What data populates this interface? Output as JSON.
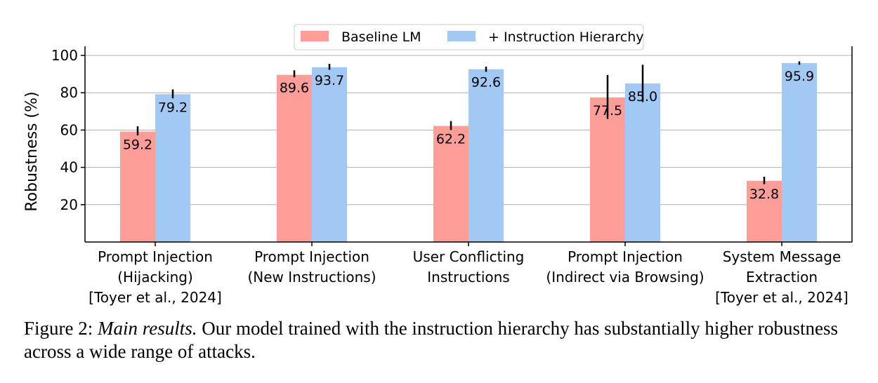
{
  "chart_data": {
    "type": "bar",
    "ylabel": "Robustness (%)",
    "ylim": [
      0,
      100
    ],
    "yticks": [
      20,
      40,
      60,
      80,
      100
    ],
    "grid": "horizontal",
    "legend_position": "top-center",
    "categories": [
      [
        "Prompt Injection",
        "(Hijacking)",
        "[Toyer et al., 2024]"
      ],
      [
        "Prompt Injection",
        "(New Instructions)"
      ],
      [
        "User Conflicting",
        "Instructions"
      ],
      [
        "Prompt Injection",
        "(Indirect via Browsing)"
      ],
      [
        "System Message",
        "Extraction",
        "[Toyer et al., 2024]"
      ]
    ],
    "series": [
      {
        "name": "Baseline LM",
        "color": "#ff9d99",
        "values": [
          59.2,
          89.6,
          62.2,
          77.5,
          32.8
        ],
        "error_low": [
          57.1,
          88.3,
          60.0,
          66.0,
          31.0
        ],
        "error_high": [
          62.0,
          92.0,
          64.8,
          89.5,
          35.0
        ]
      },
      {
        "name": "+ Instruction Hierarchy",
        "color": "#a1c9f4",
        "values": [
          79.2,
          93.7,
          92.6,
          85.0,
          95.9
        ],
        "error_low": [
          77.0,
          92.3,
          91.2,
          75.0,
          95.0
        ],
        "error_high": [
          81.8,
          95.5,
          94.0,
          95.0,
          96.8
        ]
      }
    ]
  },
  "caption": {
    "prefix": "Figure 2: ",
    "emphasis": "Main results.",
    "text": " Our model trained with the instruction hierarchy has substantially higher robustness across a wide range of attacks."
  }
}
